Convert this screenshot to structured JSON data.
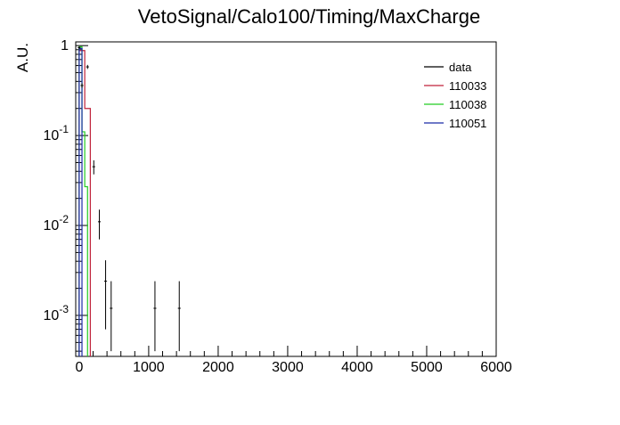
{
  "chart_data": {
    "type": "line",
    "title": "VetoSignal/Calo100/Timing/MaxCharge",
    "xlabel": "",
    "ylabel": "A.U.",
    "xlim": [
      -50,
      6000
    ],
    "ylim": [
      0.00035,
      1.1
    ],
    "yscale": "log",
    "grid": false,
    "legend_position": "top-right",
    "x_ticks": [
      {
        "value": 0,
        "label": "0"
      },
      {
        "value": 1000,
        "label": "1000"
      },
      {
        "value": 2000,
        "label": "2000"
      },
      {
        "value": 3000,
        "label": "3000"
      },
      {
        "value": 4000,
        "label": "4000"
      },
      {
        "value": 5000,
        "label": "5000"
      },
      {
        "value": 6000,
        "label": "6000"
      }
    ],
    "y_ticks": [
      {
        "value": 1,
        "label": "1"
      },
      {
        "value": 0.1,
        "label": "10^{-1}"
      },
      {
        "value": 0.01,
        "label": "10^{-2}"
      },
      {
        "value": 0.001,
        "label": "10^{-3}"
      }
    ],
    "series": [
      {
        "name": "data",
        "color": "#000000",
        "style": "points-with-errors",
        "points": [
          {
            "x": 0,
            "y": 0.95,
            "yerr_low": 0.03,
            "yerr_high": 0.03,
            "xerr": 20
          },
          {
            "x": 40,
            "y": 0.36,
            "yerr_low": 0.02,
            "yerr_high": 0.02,
            "xerr": 20
          },
          {
            "x": 120,
            "y": 0.58,
            "yerr_low": 0.03,
            "yerr_high": 0.03,
            "xerr": 20
          },
          {
            "x": 210,
            "y": 0.045,
            "yerr_low": 0.008,
            "yerr_high": 0.008,
            "xerr": 20
          },
          {
            "x": 290,
            "y": 0.011,
            "yerr_low": 0.004,
            "yerr_high": 0.004,
            "xerr": 20
          },
          {
            "x": 380,
            "y": 0.0024,
            "yerr_low": 0.0017,
            "yerr_high": 0.0017,
            "xerr": 20
          },
          {
            "x": 460,
            "y": 0.0012,
            "yerr_low": 0.0008,
            "yerr_high": 0.0012,
            "xerr": 20
          },
          {
            "x": 1090,
            "y": 0.0012,
            "yerr_low": 0.0008,
            "yerr_high": 0.0012,
            "xerr": 20
          },
          {
            "x": 1440,
            "y": 0.0012,
            "yerr_low": 0.0008,
            "yerr_high": 0.0012,
            "xerr": 20
          }
        ]
      },
      {
        "name": "110033",
        "color": "#c0223a",
        "style": "step",
        "bins": [
          {
            "x0": 0,
            "x1": 80,
            "y": 0.88
          },
          {
            "x0": 80,
            "x1": 160,
            "y": 0.2
          }
        ]
      },
      {
        "name": "110038",
        "color": "#22cc22",
        "style": "step",
        "bins": [
          {
            "x0": 0,
            "x1": 40,
            "y": 0.97
          },
          {
            "x0": 40,
            "x1": 80,
            "y": 0.11
          },
          {
            "x0": 80,
            "x1": 120,
            "y": 0.027
          }
        ]
      },
      {
        "name": "110051",
        "color": "#1a2aa8",
        "style": "step",
        "bins": [
          {
            "x0": 0,
            "x1": 40,
            "y": 0.93
          }
        ]
      }
    ]
  }
}
